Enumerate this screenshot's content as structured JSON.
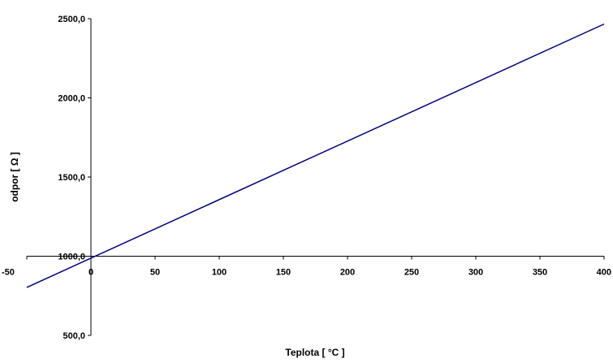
{
  "chart_data": {
    "type": "line",
    "xlabel": "Teplota [ °C ]",
    "ylabel": "odpor [ Ω ]",
    "xlim": [
      -50,
      400
    ],
    "ylim": [
      500,
      2500
    ],
    "x_ticks": [
      -50,
      0,
      50,
      100,
      150,
      200,
      250,
      300,
      350,
      400
    ],
    "x_tick_labels": [
      "-50",
      "0",
      "50",
      "100",
      "150",
      "200",
      "250",
      "300",
      "350",
      "400"
    ],
    "y_ticks": [
      500,
      1000,
      1500,
      2000,
      2500
    ],
    "y_tick_labels": [
      "500,0",
      "1000,0",
      "1500,0",
      "2000,0",
      "2500,0"
    ],
    "grid": false,
    "legend": "none",
    "series": [
      {
        "color": "#000080",
        "x": [
          -50,
          400
        ],
        "y": [
          803,
          2466
        ]
      }
    ]
  }
}
